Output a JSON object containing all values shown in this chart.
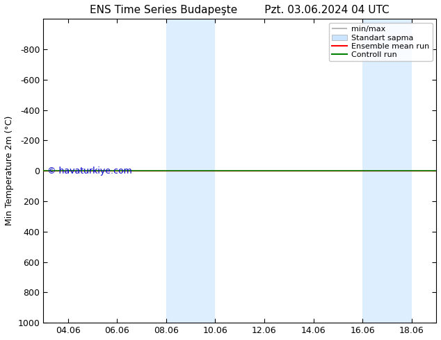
{
  "title_left": "ENS Time Series Budapeşte",
  "title_right": "Pzt. 03.06.2024 04 UTC",
  "ylabel": "Min Temperature 2m (°C)",
  "xtick_labels": [
    "04.06",
    "06.06",
    "08.06",
    "10.06",
    "12.06",
    "14.06",
    "16.06",
    "18.06"
  ],
  "xtick_positions": [
    1,
    3,
    5,
    7,
    9,
    11,
    13,
    15
  ],
  "xlim": [
    0,
    16
  ],
  "ylim": [
    -1000,
    1000
  ],
  "ytick_positions": [
    -800,
    -600,
    -400,
    -200,
    0,
    200,
    400,
    600,
    800,
    1000
  ],
  "ytick_labels": [
    "-800",
    "-600",
    "-400",
    "-200",
    "0",
    "200",
    "400",
    "600",
    "800",
    "1000"
  ],
  "shaded_bands": [
    {
      "x_start": 5.0,
      "x_end": 7.0
    },
    {
      "x_start": 13.0,
      "x_end": 15.0
    }
  ],
  "shaded_color": "#ddeeff",
  "horizontal_line_y": 0,
  "line_color_ensemble": "#ff0000",
  "line_color_control": "#008000",
  "watermark": "© havaturkiye.com",
  "watermark_color": "#0000cc",
  "bg_color": "#ffffff",
  "legend_labels": [
    "min/max",
    "Standart sapma",
    "Ensemble mean run",
    "Controll run"
  ],
  "minmax_color": "#aaaaaa",
  "std_color": "#cce5ff",
  "title_fontsize": 11,
  "axis_label_fontsize": 9,
  "tick_fontsize": 9,
  "watermark_fontsize": 9
}
